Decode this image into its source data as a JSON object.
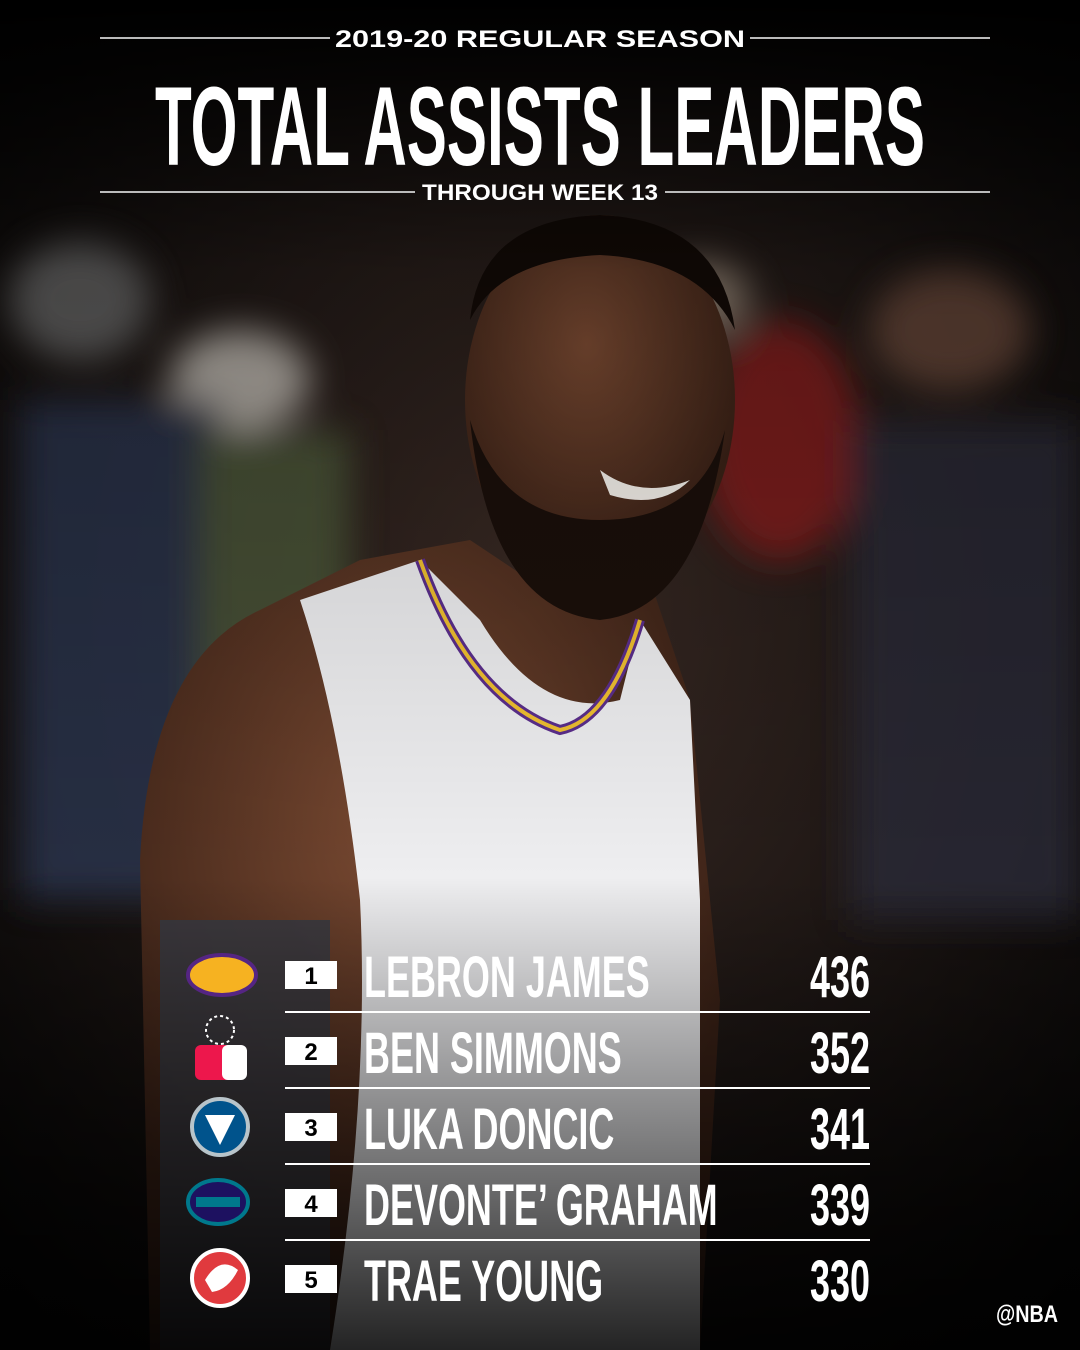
{
  "header": {
    "season": "2019-20 REGULAR SEASON",
    "title": "TOTAL ASSISTS LEADERS",
    "subtitle": "THROUGH WEEK 13"
  },
  "table": {
    "rows": [
      [
        1,
        "LEBRON JAMES",
        436
      ],
      [
        2,
        "BEN SIMMONS",
        352
      ],
      [
        3,
        "LUKA DONCIC",
        341
      ],
      [
        4,
        "DEVONTE’ GRAHAM",
        339
      ],
      [
        5,
        "TRAE YOUNG",
        330
      ]
    ]
  },
  "footer": {
    "handle": "@NBA"
  }
}
